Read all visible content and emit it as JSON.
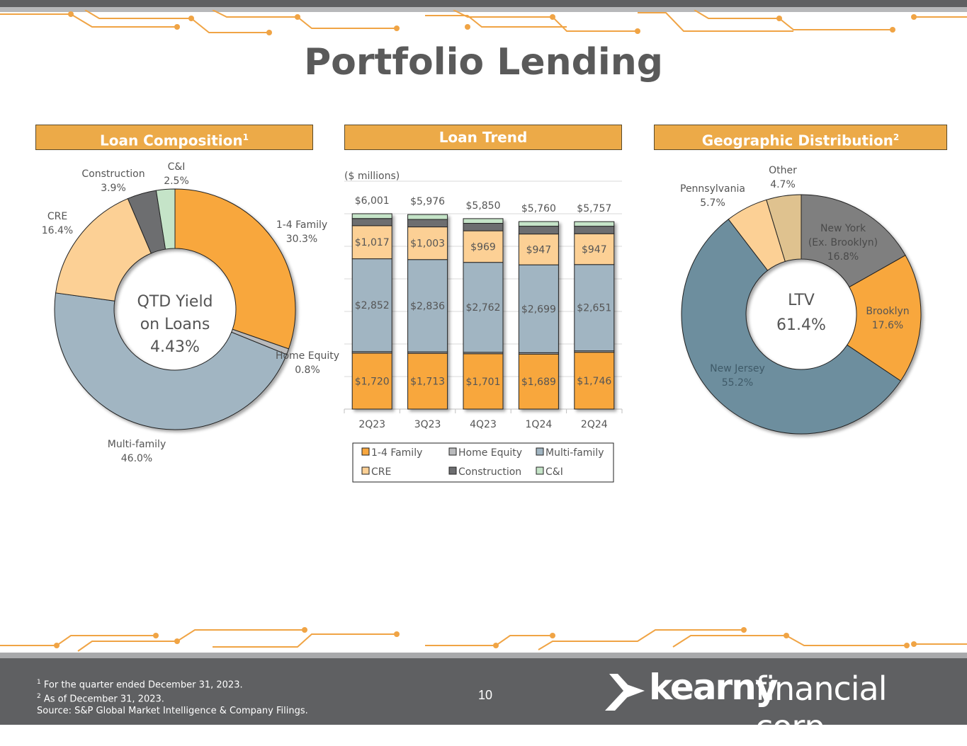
{
  "page": {
    "title": "Portfolio Lending",
    "page_number": "10",
    "footnotes": [
      {
        "marker": "1",
        "text": "For the quarter ended December 31, 2023."
      },
      {
        "marker": "2",
        "text": "As of December 31, 2023."
      },
      {
        "marker": "",
        "text": "Source: S&P Global Market Intelligence & Company Filings."
      }
    ],
    "logo": {
      "word1": "kearny",
      "word2": "financial corp."
    }
  },
  "colors": {
    "orange": "#f8a73e",
    "light_orange": "#fcd095",
    "gray_blue": "#a1b5c2",
    "dark_gray": "#6d6e70",
    "light_gray": "#b9babc",
    "mint": "#c5e4c8",
    "steel_blue": "#6d8e9e",
    "tan": "#dfc28f",
    "header_orange": "#ecaa48",
    "ny_gray": "#7f7f7f"
  },
  "panels": {
    "composition": {
      "title": "Loan Composition",
      "sup": "1"
    },
    "trend": {
      "title": "Loan Trend",
      "sup": ""
    },
    "geo": {
      "title": "Geographic Distribution",
      "sup": "2"
    }
  },
  "chart_data": [
    {
      "type": "pie",
      "variant": "donut",
      "title": "Loan Composition",
      "center_text": [
        "QTD Yield",
        "on Loans",
        "4.43%"
      ],
      "slices": [
        {
          "label": "1-4 Family",
          "value": 30.3,
          "display": "30.3%",
          "color": "#f8a73e"
        },
        {
          "label": "Home Equity",
          "value": 0.8,
          "display": "0.8%",
          "color": "#b9babc"
        },
        {
          "label": "Multi-family",
          "value": 46.0,
          "display": "46.0%",
          "color": "#a1b5c2"
        },
        {
          "label": "CRE",
          "value": 16.4,
          "display": "16.4%",
          "color": "#fcd095"
        },
        {
          "label": "Construction",
          "value": 3.9,
          "display": "3.9%",
          "color": "#6d6e70"
        },
        {
          "label": "C&I",
          "value": 2.5,
          "display": "2.5%",
          "color": "#c5e4c8"
        }
      ]
    },
    {
      "type": "bar",
      "variant": "stacked",
      "title": "Loan Trend",
      "unit_label": "($ millions)",
      "categories": [
        "2Q23",
        "3Q23",
        "4Q23",
        "1Q24",
        "2Q24"
      ],
      "totals": [
        6001,
        5976,
        5850,
        5760,
        5757
      ],
      "total_labels": [
        "$6,001",
        "$5,976",
        "$5,850",
        "$5,760",
        "$5,757"
      ],
      "ylim": [
        0,
        7000
      ],
      "legend_position": "bottom",
      "series": [
        {
          "name": "1-4 Family",
          "color": "#f8a73e",
          "values": [
            1720,
            1713,
            1701,
            1689,
            1746
          ],
          "labels": [
            "$1,720",
            "$1,713",
            "$1,701",
            "$1,689",
            "$1,746"
          ]
        },
        {
          "name": "Home Equity",
          "color": "#b9babc",
          "values": [
            45,
            44,
            44,
            43,
            43
          ],
          "labels": []
        },
        {
          "name": "Multi-family",
          "color": "#a1b5c2",
          "values": [
            2852,
            2836,
            2762,
            2699,
            2651
          ],
          "labels": [
            "$2,852",
            "$2,836",
            "$2,762",
            "$2,699",
            "$2,651"
          ]
        },
        {
          "name": "CRE",
          "color": "#fcd095",
          "values": [
            1017,
            1003,
            969,
            947,
            947
          ],
          "labels": [
            "$1,017",
            "$1,003",
            "$969",
            "$947",
            "$947"
          ]
        },
        {
          "name": "Construction",
          "color": "#6d6e70",
          "values": [
            220,
            230,
            230,
            240,
            230
          ],
          "labels": []
        },
        {
          "name": "C&I",
          "color": "#c5e4c8",
          "values": [
            147,
            150,
            144,
            142,
            140
          ],
          "labels": []
        }
      ]
    },
    {
      "type": "pie",
      "variant": "donut",
      "title": "Geographic Distribution",
      "center_text": [
        "LTV",
        "61.4%"
      ],
      "slices": [
        {
          "label": "New York (Ex. Brooklyn)",
          "label_lines": [
            "New York",
            "(Ex. Brooklyn)"
          ],
          "value": 16.8,
          "display": "16.8%",
          "color": "#7f7f7f"
        },
        {
          "label": "Brooklyn",
          "label_lines": [
            "Brooklyn"
          ],
          "value": 17.6,
          "display": "17.6%",
          "color": "#f8a73e"
        },
        {
          "label": "New Jersey",
          "label_lines": [
            "New Jersey"
          ],
          "value": 55.2,
          "display": "55.2%",
          "color": "#6d8e9e"
        },
        {
          "label": "Pennsylvania",
          "label_lines": [
            "Pennsylvania"
          ],
          "value": 5.7,
          "display": "5.7%",
          "color": "#fcd095"
        },
        {
          "label": "Other",
          "label_lines": [
            "Other"
          ],
          "value": 4.7,
          "display": "4.7%",
          "color": "#dfc28f"
        }
      ]
    }
  ]
}
